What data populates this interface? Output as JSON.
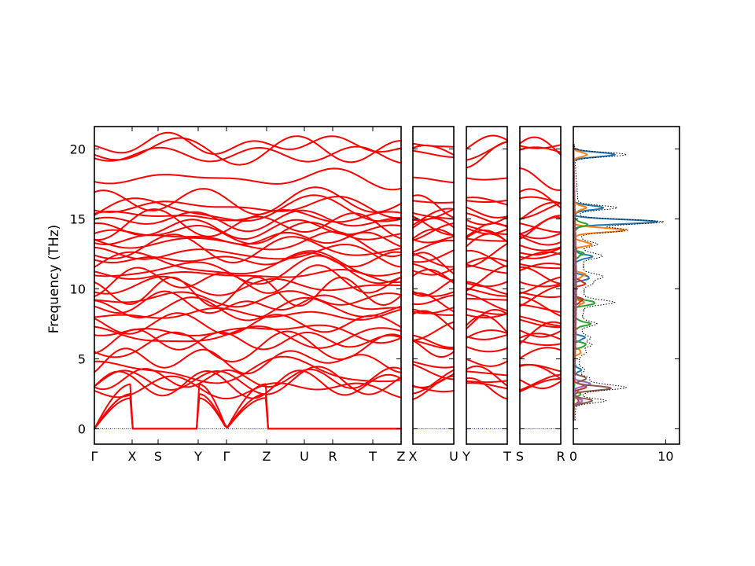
{
  "chart_data": {
    "type": "line",
    "description": "",
    "ylabel": "Frequency (THz)",
    "ylim": [
      -1.1,
      21.6
    ],
    "y_ticks": [
      0,
      5,
      10,
      15,
      20
    ],
    "band_color": "#ff0000",
    "zero_line_color": "#0000cc",
    "band_panels": [
      {
        "name": "path-1",
        "labels": [
          "Γ",
          "X",
          "S",
          "Y",
          "Γ",
          "Z",
          "U",
          "R",
          "T",
          "Z"
        ],
        "segments": [
          {
            "from": "Γ",
            "to": "X",
            "length": 0.8
          },
          {
            "from": "X",
            "to": "S",
            "length": 0.55
          },
          {
            "from": "S",
            "to": "Y",
            "length": 0.85
          },
          {
            "from": "Y",
            "to": "Γ",
            "length": 0.6
          },
          {
            "from": "Γ",
            "to": "Z",
            "length": 0.85
          },
          {
            "from": "Z",
            "to": "U",
            "length": 0.8
          },
          {
            "from": "U",
            "to": "R",
            "length": 0.6
          },
          {
            "from": "R",
            "to": "T",
            "length": 0.85
          },
          {
            "from": "T",
            "to": "Z",
            "length": 0.6
          }
        ]
      },
      {
        "name": "path-2",
        "labels": [
          "X",
          "U"
        ],
        "segments": [
          {
            "from": "X",
            "to": "U",
            "length": 0.85
          }
        ]
      },
      {
        "name": "path-3",
        "labels": [
          "Y",
          "T"
        ],
        "segments": [
          {
            "from": "Y",
            "to": "T",
            "length": 0.85
          }
        ]
      },
      {
        "name": "path-4",
        "labels": [
          "S",
          "R"
        ],
        "segments": [
          {
            "from": "S",
            "to": "R",
            "length": 0.85
          }
        ]
      }
    ],
    "gamma_levels": [
      0,
      0,
      0,
      2.9,
      3.2,
      3.4,
      3.6,
      4.1,
      4.9,
      5.9,
      6.3,
      6.6,
      7.0,
      7.5,
      8.2,
      8.6,
      8.9,
      9.3,
      9.8,
      10.2,
      10.6,
      11.0,
      11.3,
      11.7,
      12.1,
      12.5,
      12.9,
      13.3,
      13.6,
      14.0,
      14.3,
      14.6,
      14.9,
      15.2,
      15.6,
      15.9,
      16.3,
      17.9,
      19.6,
      19.9,
      20.3
    ],
    "band_samples": [
      {
        "panel": 0,
        "band": 3,
        "x": [
          0,
          0.8,
          1.35,
          2.2,
          2.8
        ],
        "y": [
          2.9,
          2.0,
          1.9,
          2.4,
          2.9
        ]
      },
      {
        "panel": 0,
        "band": 38,
        "x": [
          0,
          0.8,
          1.35,
          2.2,
          2.8
        ],
        "y": [
          19.6,
          19.6,
          19.5,
          19.6,
          19.6
        ]
      }
    ],
    "dos": {
      "xlim": [
        0,
        11.5
      ],
      "x_ticks": [
        0,
        10
      ],
      "series": [
        {
          "color": "#1f77b4",
          "peaks": [
            [
              19.6,
              5.0
            ],
            [
              15.8,
              3.5
            ],
            [
              14.8,
              10.0
            ],
            [
              12.3,
              2.0
            ],
            [
              10.8,
              1.8
            ],
            [
              6.5,
              1.2
            ],
            [
              4.2,
              0.8
            ]
          ]
        },
        {
          "color": "#ff7f0e",
          "peaks": [
            [
              19.6,
              1.6
            ],
            [
              15.8,
              1.4
            ],
            [
              14.2,
              6.0
            ],
            [
              13.2,
              2.0
            ],
            [
              11.0,
              1.2
            ],
            [
              9.0,
              1.0
            ],
            [
              5.5,
              0.8
            ]
          ]
        },
        {
          "color": "#2ca02c",
          "peaks": [
            [
              14.6,
              1.5
            ],
            [
              12.5,
              1.0
            ],
            [
              9.0,
              2.5
            ],
            [
              7.5,
              1.8
            ],
            [
              6.0,
              1.4
            ],
            [
              2.5,
              0.8
            ]
          ]
        },
        {
          "color": "#d62728",
          "peaks": [
            [
              10.4,
              1.2
            ],
            [
              9.2,
              0.9
            ],
            [
              3.0,
              1.5
            ],
            [
              2.0,
              0.6
            ]
          ]
        },
        {
          "color": "#9467bd",
          "peaks": [
            [
              3.2,
              2.0
            ],
            [
              2.0,
              1.0
            ]
          ]
        },
        {
          "color": "#8c564b",
          "peaks": [
            [
              2.9,
              4.5
            ],
            [
              2.0,
              2.2
            ],
            [
              3.6,
              1.5
            ]
          ]
        }
      ],
      "total_color": "#000000"
    }
  }
}
